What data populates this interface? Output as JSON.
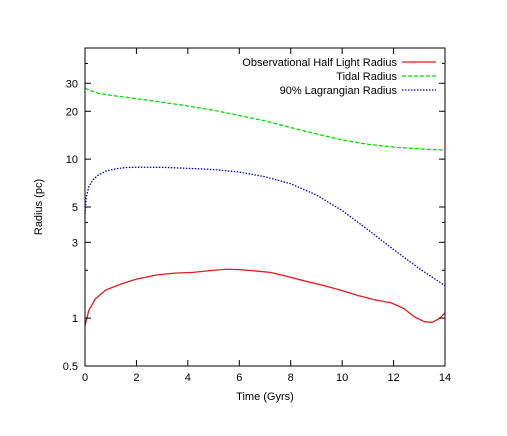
{
  "chart_data": {
    "type": "line",
    "title": "",
    "xlabel": "Time (Gyrs)",
    "ylabel": "Radius (pc)",
    "xlim": [
      0,
      14
    ],
    "ylim": [
      0.5,
      50
    ],
    "y_scale": "log",
    "grid": false,
    "legend_position": "top-right",
    "x_ticks": [
      0,
      2,
      4,
      6,
      8,
      10,
      12,
      14
    ],
    "y_ticks": [
      0.5,
      1,
      3,
      5,
      10,
      20,
      30
    ],
    "series": [
      {
        "name": "Observational Half Light Radius",
        "color": "#e41a1c",
        "dash": "solid",
        "points": [
          [
            0,
            0.9
          ],
          [
            0.15,
            1.12
          ],
          [
            0.4,
            1.32
          ],
          [
            0.8,
            1.5
          ],
          [
            1.4,
            1.64
          ],
          [
            2,
            1.76
          ],
          [
            2.8,
            1.87
          ],
          [
            3.5,
            1.92
          ],
          [
            4.2,
            1.94
          ],
          [
            5,
            2.0
          ],
          [
            5.5,
            2.03
          ],
          [
            6,
            2.02
          ],
          [
            6.5,
            1.99
          ],
          [
            7.2,
            1.94
          ],
          [
            7.8,
            1.84
          ],
          [
            8.5,
            1.72
          ],
          [
            9.3,
            1.6
          ],
          [
            10,
            1.49
          ],
          [
            10.6,
            1.39
          ],
          [
            11.3,
            1.3
          ],
          [
            11.9,
            1.25
          ],
          [
            12.4,
            1.15
          ],
          [
            12.8,
            1.02
          ],
          [
            13.2,
            0.95
          ],
          [
            13.5,
            0.94
          ],
          [
            13.8,
            1.0
          ],
          [
            14,
            1.08
          ]
        ]
      },
      {
        "name": "Tidal Radius",
        "color": "#00dd00",
        "dash": "dashed",
        "points": [
          [
            0,
            28
          ],
          [
            0.2,
            27
          ],
          [
            0.5,
            26
          ],
          [
            1,
            25.2
          ],
          [
            2,
            24
          ],
          [
            3,
            22.8
          ],
          [
            4,
            21.6
          ],
          [
            5,
            20.3
          ],
          [
            6,
            18.8
          ],
          [
            7,
            17.4
          ],
          [
            8,
            15.8
          ],
          [
            9,
            14.4
          ],
          [
            10,
            13.2
          ],
          [
            11,
            12.4
          ],
          [
            12,
            11.9
          ],
          [
            13,
            11.6
          ],
          [
            14,
            11.4
          ]
        ]
      },
      {
        "name": "90% Lagrangian Radius",
        "color": "#0000cc",
        "dash": "dotted",
        "points": [
          [
            0,
            4.5
          ],
          [
            0.05,
            5.8
          ],
          [
            0.15,
            6.7
          ],
          [
            0.3,
            7.4
          ],
          [
            0.5,
            7.9
          ],
          [
            0.8,
            8.4
          ],
          [
            1.2,
            8.7
          ],
          [
            1.6,
            8.85
          ],
          [
            2,
            8.9
          ],
          [
            3,
            8.88
          ],
          [
            4,
            8.75
          ],
          [
            5,
            8.6
          ],
          [
            6,
            8.3
          ],
          [
            7,
            7.75
          ],
          [
            8,
            7.0
          ],
          [
            9,
            5.95
          ],
          [
            10,
            4.75
          ],
          [
            11,
            3.6
          ],
          [
            12,
            2.7
          ],
          [
            13,
            2.05
          ],
          [
            14,
            1.6
          ]
        ]
      }
    ]
  }
}
